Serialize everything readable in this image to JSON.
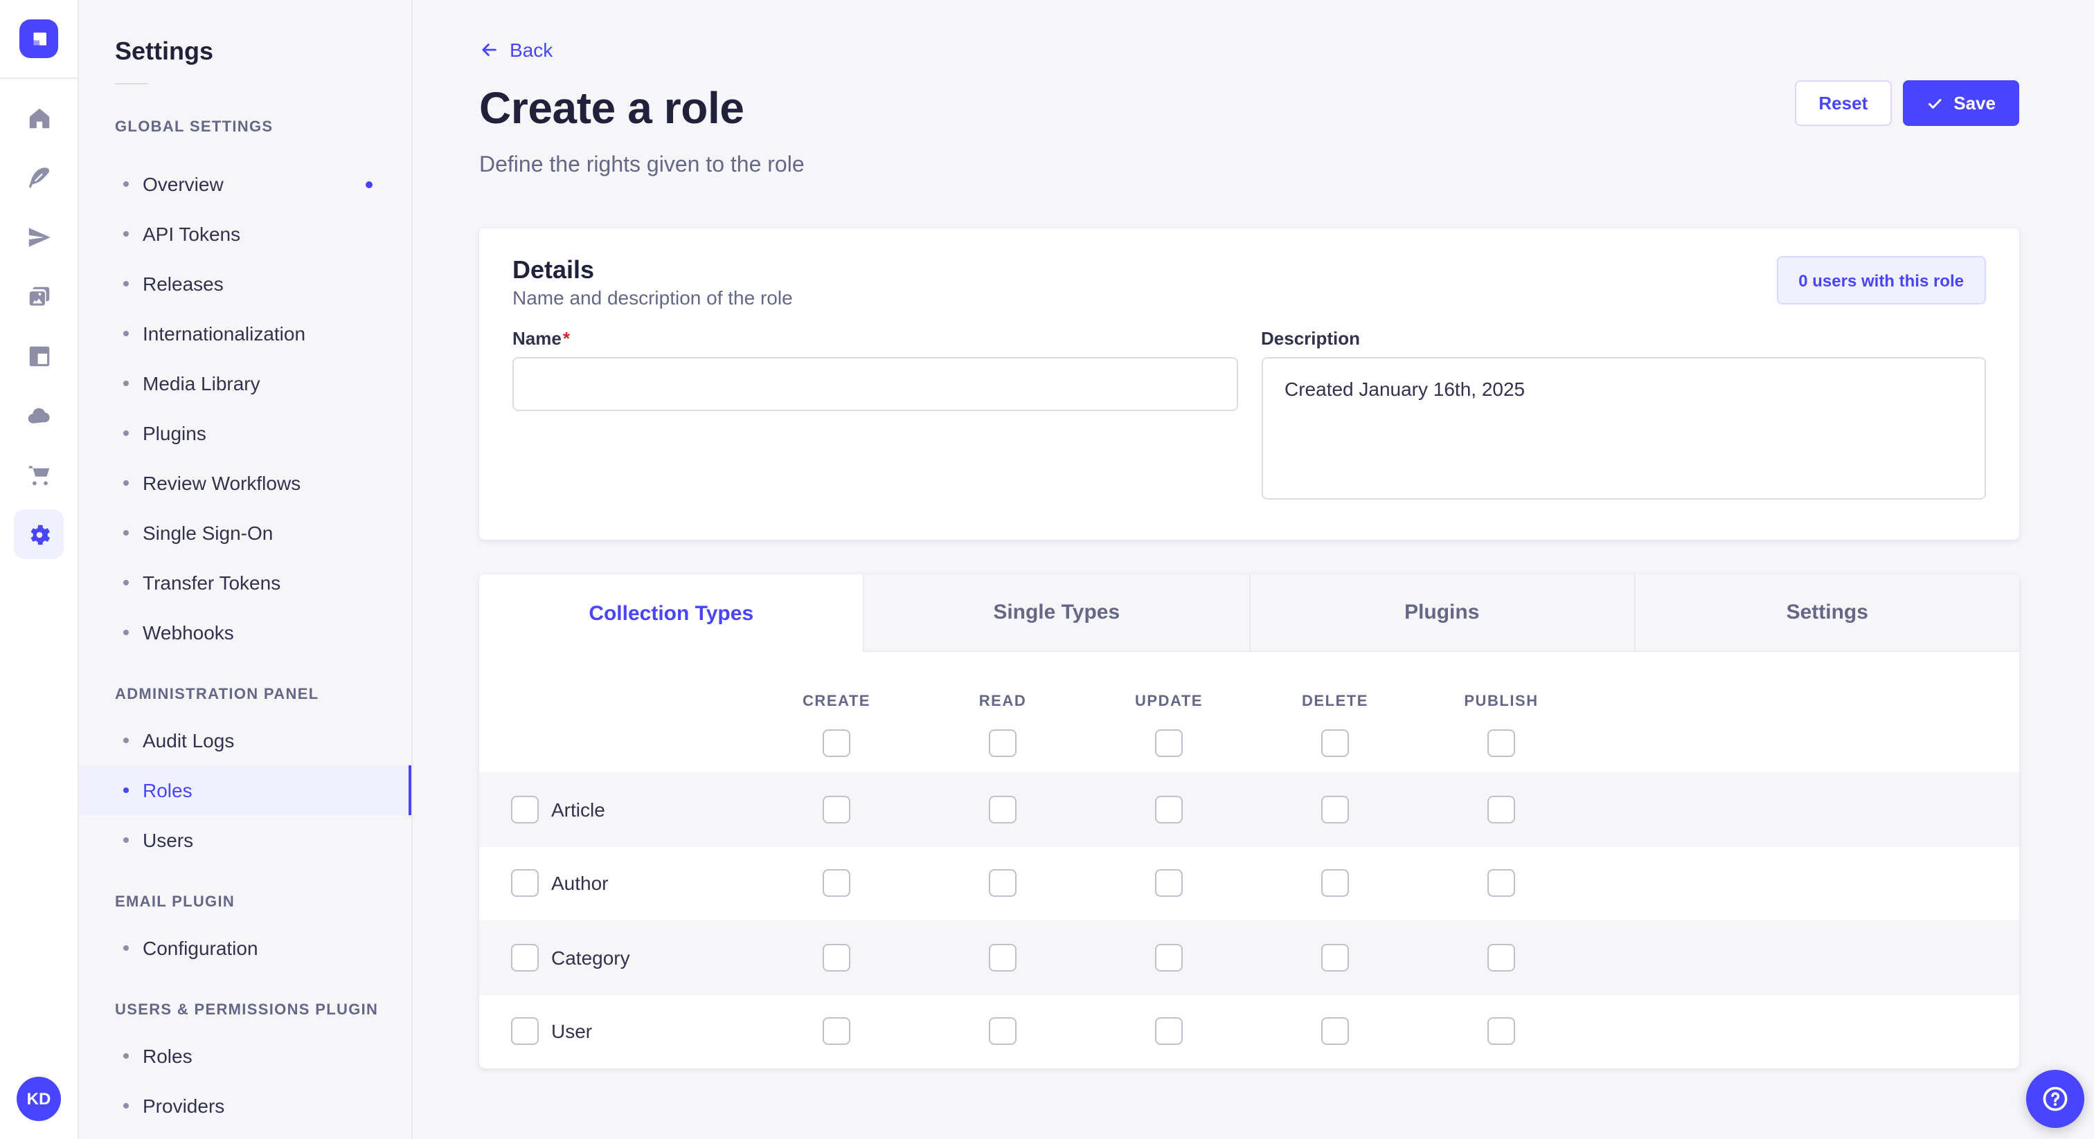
{
  "colors": {
    "primary": "#4945ff",
    "primary_light_bg": "#f0f0ff",
    "primary_border": "#d9d8ff",
    "page_bg": "#f6f6f9",
    "text": "#32324d",
    "text_muted": "#666687",
    "required_red": "#d02b20"
  },
  "nav_rail": {
    "logo_icon": "strapi-logo-icon",
    "icons": [
      {
        "name": "nav-home",
        "glyph": "i-home",
        "active": false
      },
      {
        "name": "nav-content-type-builder",
        "glyph": "i-feather",
        "active": false
      },
      {
        "name": "nav-releases",
        "glyph": "i-send",
        "active": false
      },
      {
        "name": "nav-media-library",
        "glyph": "i-images",
        "active": false
      },
      {
        "name": "nav-content-manager",
        "glyph": "i-layout",
        "active": false
      },
      {
        "name": "nav-deploy",
        "glyph": "i-cloud",
        "active": false
      },
      {
        "name": "nav-marketplace",
        "glyph": "i-cart",
        "active": false
      },
      {
        "name": "nav-settings",
        "glyph": "i-gear",
        "active": true
      }
    ],
    "avatar_initials": "KD"
  },
  "sidebar": {
    "title": "Settings",
    "sections": [
      {
        "label": "GLOBAL SETTINGS",
        "items": [
          {
            "label": "Overview",
            "notification": true
          },
          {
            "label": "API Tokens"
          },
          {
            "label": "Releases"
          },
          {
            "label": "Internationalization"
          },
          {
            "label": "Media Library"
          },
          {
            "label": "Plugins"
          },
          {
            "label": "Review Workflows"
          },
          {
            "label": "Single Sign-On"
          },
          {
            "label": "Transfer Tokens"
          },
          {
            "label": "Webhooks"
          }
        ]
      },
      {
        "label": "ADMINISTRATION PANEL",
        "items": [
          {
            "label": "Audit Logs"
          },
          {
            "label": "Roles",
            "selected": true
          },
          {
            "label": "Users"
          }
        ]
      },
      {
        "label": "EMAIL PLUGIN",
        "items": [
          {
            "label": "Configuration"
          }
        ]
      },
      {
        "label": "USERS & PERMISSIONS PLUGIN",
        "items": [
          {
            "label": "Roles"
          },
          {
            "label": "Providers"
          }
        ]
      }
    ]
  },
  "header": {
    "back_label": "Back",
    "title": "Create a role",
    "subtitle": "Define the rights given to the role",
    "reset_label": "Reset",
    "save_label": "Save"
  },
  "details": {
    "title": "Details",
    "subtitle": "Name and description of the role",
    "users_button_label": "0 users with this role",
    "name_label": "Name",
    "required_mark": "*",
    "name_value": "",
    "description_label": "Description",
    "description_value": "Created January 16th, 2025"
  },
  "tabs": [
    {
      "label": "Collection Types",
      "active": true
    },
    {
      "label": "Single Types",
      "active": false
    },
    {
      "label": "Plugins",
      "active": false
    },
    {
      "label": "Settings",
      "active": false
    }
  ],
  "permissions": {
    "columns": [
      "Create",
      "Read",
      "Update",
      "Delete",
      "Publish"
    ],
    "header_checked": [
      false,
      false,
      false,
      false,
      false
    ],
    "rows": [
      {
        "label": "Article",
        "row_checked": false,
        "checked": [
          false,
          false,
          false,
          false,
          false
        ]
      },
      {
        "label": "Author",
        "row_checked": false,
        "checked": [
          false,
          false,
          false,
          false,
          false
        ]
      },
      {
        "label": "Category",
        "row_checked": false,
        "checked": [
          false,
          false,
          false,
          false,
          false
        ]
      },
      {
        "label": "User",
        "row_checked": false,
        "checked": [
          false,
          false,
          false,
          false,
          false
        ]
      }
    ]
  },
  "help": {
    "icon": "question-icon"
  }
}
